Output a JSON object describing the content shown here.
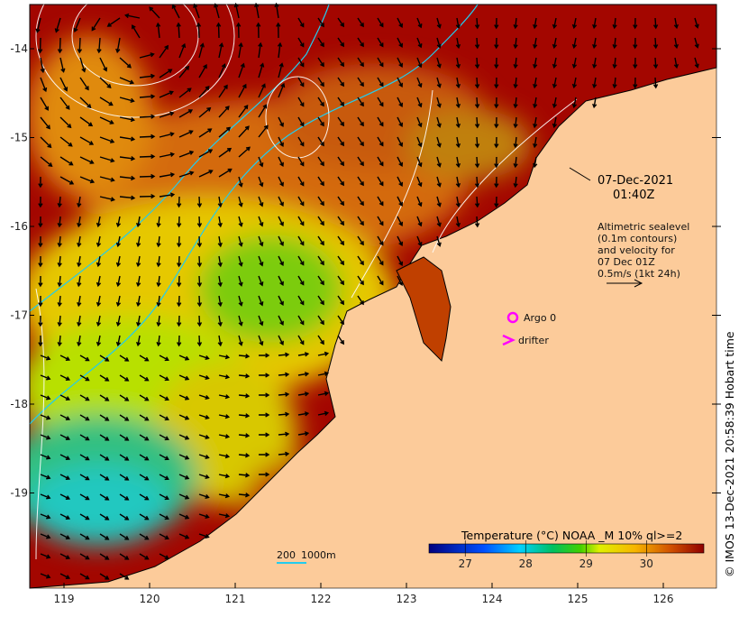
{
  "map": {
    "date": "07-Dec-2021",
    "time": "01:40Z",
    "altimetry_note": [
      "Altimetric sealevel",
      "(0.1m contours)",
      "and velocity for",
      "07 Dec 01Z",
      "0.5m/s (1kt 24h)"
    ],
    "legend": {
      "argo": "Argo 0",
      "drifter": "drifter"
    },
    "scale_bar": {
      "label_a": "200",
      "label_b": "1000m"
    },
    "copyright": "© IMOS 13-Dec-2021 20:58:39 Hobart time",
    "lon_ticks": [
      "119",
      "120",
      "121",
      "122",
      "123",
      "124",
      "125",
      "126"
    ],
    "lat_ticks": [
      "-14",
      "-15",
      "-16",
      "-17",
      "-18",
      "-19"
    ]
  },
  "colorbar": {
    "title": "Temperature (°C) NOAA _M 10% ql>=2",
    "ticks": [
      "27",
      "28",
      "29",
      "30"
    ],
    "range": [
      26.4,
      30.95
    ]
  },
  "colors": {
    "land": "#fccb9a",
    "hot": "#a00000",
    "argo": "#ff00ff",
    "isobath": "#22ccee"
  }
}
